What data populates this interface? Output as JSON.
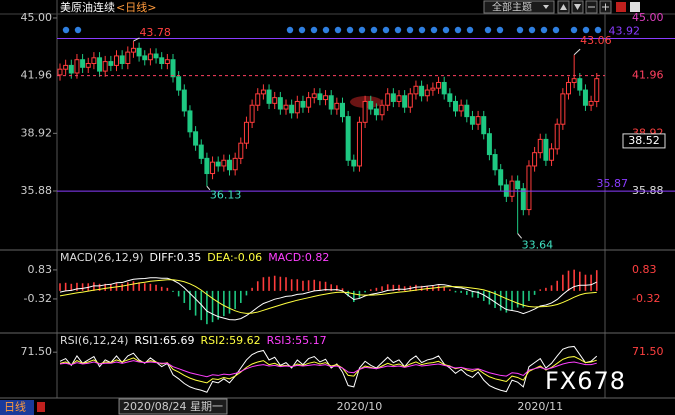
{
  "toolbar": {
    "button": "全部主题"
  },
  "watermark": "FX678",
  "status": {
    "period": "日线"
  },
  "chart_data": [
    {
      "type": "candlestick",
      "title": "美原油连续",
      "period": "<日线>",
      "categories": [
        null,
        null,
        null,
        null,
        null,
        null,
        null,
        null,
        null,
        null,
        null,
        null,
        null,
        null,
        null,
        null,
        null,
        null,
        null,
        null,
        "2020/08/24 星期一",
        null,
        null,
        null,
        null,
        null,
        null,
        null,
        null,
        null,
        null,
        null,
        null,
        null,
        null,
        null,
        null,
        null,
        null,
        null,
        null,
        null,
        null,
        null,
        null,
        null,
        null,
        null,
        null,
        null,
        null,
        null,
        null,
        "2020/10",
        null,
        null,
        null,
        null,
        null,
        null,
        null,
        null,
        null,
        null,
        null,
        null,
        null,
        null,
        null,
        null,
        null,
        null,
        null,
        null,
        null,
        null,
        null,
        null,
        null,
        null,
        null,
        null,
        null,
        null,
        null,
        "2020/11",
        null,
        null,
        null,
        null,
        null,
        null,
        null,
        null,
        null,
        null
      ],
      "open": [
        42.0,
        42.3,
        42.5,
        42.1,
        42.8,
        42.4,
        42.6,
        42.9,
        42.2,
        42.7,
        42.5,
        43.0,
        42.6,
        43.2,
        43.4,
        43.0,
        42.8,
        43.1,
        42.9,
        42.6,
        42.8,
        41.9,
        41.2,
        40.1,
        39.0,
        38.3,
        37.6,
        36.8,
        37.4,
        37.2,
        37.5,
        37.0,
        37.6,
        38.4,
        39.5,
        40.4,
        41.0,
        41.2,
        40.5,
        40.8,
        40.2,
        40.4,
        40.0,
        40.6,
        40.3,
        40.8,
        41.0,
        40.7,
        40.9,
        40.2,
        40.5,
        39.8,
        37.5,
        37.2,
        39.5,
        40.6,
        40.2,
        39.9,
        40.4,
        41.0,
        40.6,
        40.9,
        40.3,
        41.0,
        41.4,
        40.9,
        41.2,
        41.3,
        41.6,
        41.0,
        40.6,
        40.1,
        40.4,
        39.8,
        39.4,
        39.8,
        38.9,
        37.8,
        37.0,
        36.2,
        35.6,
        36.4,
        36.0,
        34.9,
        37.2,
        37.9,
        38.6,
        37.5,
        38.1,
        39.4,
        41.0,
        41.6,
        41.8,
        41.2,
        40.4,
        40.6
      ],
      "high": [
        42.6,
        42.8,
        42.8,
        43.1,
        43.1,
        42.9,
        43.2,
        43.2,
        43.0,
        43.0,
        43.3,
        43.3,
        43.5,
        43.78,
        43.7,
        43.3,
        43.4,
        43.4,
        43.2,
        43.1,
        43.1,
        42.2,
        41.5,
        40.4,
        39.3,
        38.6,
        37.9,
        37.7,
        37.7,
        37.8,
        37.8,
        37.9,
        38.7,
        39.8,
        40.7,
        41.3,
        41.5,
        41.5,
        41.1,
        41.1,
        40.7,
        40.7,
        40.9,
        40.9,
        41.1,
        41.3,
        41.3,
        41.2,
        41.2,
        40.8,
        40.8,
        40.1,
        37.8,
        39.8,
        40.9,
        40.9,
        40.5,
        40.7,
        41.3,
        41.3,
        41.2,
        41.2,
        41.3,
        41.7,
        41.7,
        41.5,
        41.6,
        41.9,
        41.9,
        41.3,
        40.9,
        40.7,
        40.7,
        40.1,
        40.1,
        40.1,
        39.2,
        38.1,
        37.3,
        36.5,
        36.7,
        36.7,
        36.3,
        37.5,
        38.2,
        38.9,
        38.9,
        38.4,
        39.7,
        41.3,
        41.9,
        43.06,
        42.1,
        41.5,
        40.9,
        42.1
      ],
      "low": [
        41.7,
        42.0,
        41.8,
        41.8,
        42.1,
        42.1,
        42.3,
        41.9,
        41.9,
        42.2,
        42.2,
        42.3,
        42.3,
        42.9,
        42.7,
        42.5,
        42.5,
        42.6,
        42.3,
        42.3,
        41.6,
        40.9,
        39.8,
        38.7,
        38.0,
        37.3,
        36.13,
        36.5,
        36.9,
        36.9,
        36.7,
        36.7,
        37.3,
        38.1,
        39.2,
        40.1,
        40.7,
        40.2,
        40.2,
        39.9,
        39.9,
        39.7,
        39.7,
        40.0,
        40.0,
        40.5,
        40.4,
        40.4,
        39.9,
        39.9,
        39.5,
        37.2,
        36.9,
        36.9,
        39.2,
        39.9,
        39.6,
        39.6,
        40.1,
        40.3,
        40.3,
        40.0,
        40.0,
        40.7,
        40.6,
        40.6,
        40.9,
        41.0,
        40.7,
        40.3,
        39.8,
        39.8,
        39.5,
        39.1,
        39.1,
        38.6,
        37.5,
        36.7,
        35.9,
        35.3,
        35.3,
        33.64,
        34.6,
        34.6,
        36.9,
        37.6,
        37.2,
        37.2,
        37.8,
        39.1,
        40.7,
        41.3,
        40.9,
        40.1,
        40.1,
        40.3
      ],
      "close": [
        42.3,
        42.5,
        42.1,
        42.8,
        42.4,
        42.6,
        42.9,
        42.2,
        42.7,
        42.5,
        43.0,
        42.6,
        43.2,
        43.4,
        43.0,
        42.8,
        43.1,
        42.9,
        42.6,
        42.8,
        41.9,
        41.2,
        40.1,
        39.0,
        38.3,
        37.6,
        36.8,
        37.4,
        37.2,
        37.5,
        37.0,
        37.6,
        38.4,
        39.5,
        40.4,
        41.0,
        41.2,
        40.5,
        40.8,
        40.2,
        40.4,
        40.0,
        40.6,
        40.3,
        40.8,
        41.0,
        40.7,
        40.9,
        40.2,
        40.5,
        39.8,
        37.5,
        37.2,
        39.5,
        40.6,
        40.2,
        39.9,
        40.4,
        41.0,
        40.6,
        40.9,
        40.3,
        41.0,
        41.4,
        40.9,
        41.2,
        41.3,
        41.6,
        41.0,
        40.6,
        40.1,
        40.4,
        39.8,
        39.4,
        39.8,
        38.9,
        37.8,
        37.0,
        36.2,
        35.6,
        36.4,
        36.0,
        34.9,
        37.2,
        37.9,
        38.6,
        37.5,
        38.1,
        39.4,
        41.0,
        41.6,
        41.8,
        41.2,
        40.4,
        40.6,
        41.8
      ],
      "up_color": "#ff3c3c",
      "down_color": "#1ec882",
      "ylim": [
        32.77,
        45.42
      ],
      "yticks": [
        {
          "value": 45,
          "label": "45.00",
          "color": "#e040c0"
        },
        {
          "value": 41.96,
          "label": "41.96",
          "color": "#ff4060",
          "line": "dashed"
        },
        {
          "value": 38.92,
          "label": "38.92",
          "color": "#ff4040"
        },
        {
          "value": 35.88,
          "label": "35.88",
          "color": "#dddddd"
        }
      ],
      "hlines": [
        {
          "value": 43.92,
          "color": "#8a3cff"
        },
        {
          "value": 35.87,
          "color": "#8a3cff"
        }
      ],
      "current_price": 38.52
    },
    {
      "type": "macd",
      "legend": [
        {
          "label": "MACD(26,12,9)",
          "color": "#dddddd"
        },
        {
          "label": "DIFF:0.35",
          "color": "#ffffff"
        },
        {
          "label": "DEA:-0.06",
          "color": "#ffff40"
        },
        {
          "label": "MACD:0.82",
          "color": "#ff40ff"
        }
      ],
      "series": [
        {
          "color": "#ffffff",
          "values": [
            -0.05,
            0.0,
            0.02,
            0.08,
            0.1,
            0.14,
            0.2,
            0.2,
            0.24,
            0.26,
            0.32,
            0.33,
            0.4,
            0.46,
            0.48,
            0.49,
            0.52,
            0.52,
            0.5,
            0.5,
            0.42,
            0.3,
            0.12,
            -0.1,
            -0.32,
            -0.55,
            -0.8,
            -0.92,
            -1.02,
            -1.08,
            -1.14,
            -1.15,
            -1.1,
            -0.98,
            -0.82,
            -0.65,
            -0.5,
            -0.42,
            -0.33,
            -0.28,
            -0.22,
            -0.2,
            -0.14,
            -0.12,
            -0.06,
            0.0,
            0.02,
            0.05,
            0.04,
            0.05,
            0.0,
            -0.18,
            -0.34,
            -0.3,
            -0.2,
            -0.14,
            -0.1,
            -0.05,
            0.02,
            0.04,
            0.07,
            0.06,
            0.1,
            0.15,
            0.16,
            0.19,
            0.21,
            0.25,
            0.24,
            0.2,
            0.14,
            0.12,
            0.06,
            -0.02,
            -0.06,
            -0.16,
            -0.3,
            -0.45,
            -0.6,
            -0.74,
            -0.78,
            -0.82,
            -0.9,
            -0.82,
            -0.72,
            -0.6,
            -0.56,
            -0.48,
            -0.34,
            -0.14,
            0.04,
            0.17,
            0.22,
            0.22,
            0.24,
            0.35
          ]
        },
        {
          "color": "#ffff40",
          "values": [
            -0.2,
            -0.16,
            -0.12,
            -0.08,
            -0.05,
            -0.01,
            0.03,
            0.06,
            0.1,
            0.13,
            0.16,
            0.19,
            0.23,
            0.27,
            0.31,
            0.34,
            0.38,
            0.4,
            0.42,
            0.44,
            0.44,
            0.41,
            0.36,
            0.28,
            0.17,
            0.03,
            -0.14,
            -0.3,
            -0.45,
            -0.58,
            -0.69,
            -0.79,
            -0.86,
            -0.89,
            -0.88,
            -0.84,
            -0.77,
            -0.7,
            -0.63,
            -0.56,
            -0.49,
            -0.43,
            -0.37,
            -0.32,
            -0.27,
            -0.22,
            -0.17,
            -0.13,
            -0.09,
            -0.06,
            -0.05,
            -0.07,
            -0.12,
            -0.16,
            -0.17,
            -0.17,
            -0.16,
            -0.14,
            -0.11,
            -0.08,
            -0.05,
            -0.03,
            0.0,
            0.03,
            0.06,
            0.09,
            0.11,
            0.14,
            0.16,
            0.17,
            0.17,
            0.16,
            0.14,
            0.11,
            0.08,
            0.04,
            -0.03,
            -0.11,
            -0.21,
            -0.31,
            -0.4,
            -0.49,
            -0.57,
            -0.62,
            -0.64,
            -0.63,
            -0.62,
            -0.59,
            -0.54,
            -0.46,
            -0.36,
            -0.25,
            -0.16,
            -0.1,
            -0.08,
            -0.06
          ]
        },
        {
          "type": "bar",
          "color": "#ff3c3c",
          "negative_color": "#1ec882",
          "values": [
            0.3,
            0.32,
            0.28,
            0.32,
            0.3,
            0.3,
            0.34,
            0.28,
            0.28,
            0.26,
            0.32,
            0.28,
            0.34,
            0.38,
            0.34,
            0.3,
            0.28,
            0.24,
            0.16,
            0.12,
            -0.04,
            -0.22,
            -0.48,
            -0.76,
            -0.98,
            -1.16,
            -1.32,
            -1.24,
            -1.14,
            -1.0,
            -0.9,
            -0.72,
            -0.48,
            -0.18,
            0.12,
            0.38,
            0.54,
            0.56,
            0.6,
            0.56,
            0.54,
            0.46,
            0.46,
            0.4,
            0.42,
            0.44,
            0.38,
            0.36,
            0.26,
            0.22,
            0.1,
            -0.22,
            -0.44,
            -0.28,
            -0.06,
            0.06,
            0.12,
            0.18,
            0.26,
            0.24,
            0.24,
            0.18,
            0.2,
            0.24,
            0.2,
            0.2,
            0.2,
            0.22,
            0.16,
            0.06,
            -0.06,
            -0.08,
            -0.16,
            -0.26,
            -0.28,
            -0.4,
            -0.54,
            -0.68,
            -0.78,
            -0.86,
            -0.76,
            -0.66,
            -0.66,
            -0.4,
            -0.16,
            0.06,
            0.12,
            0.22,
            0.4,
            0.64,
            0.8,
            0.84,
            0.76,
            0.64,
            0.64,
            0.82
          ]
        }
      ],
      "ylim": [
        -1.63,
        1.54
      ],
      "yticks": [
        0.83,
        -0.32
      ]
    },
    {
      "type": "line",
      "legend": [
        {
          "label": "RSI(6,12,24)",
          "color": "#dddddd"
        },
        {
          "label": "RSI1:65.69",
          "color": "#ffffff"
        },
        {
          "label": "RSI2:59.62",
          "color": "#ffff40"
        },
        {
          "label": "RSI3:55.17",
          "color": "#ff40ff"
        }
      ],
      "series": [
        {
          "color": "#ffffff",
          "values": [
            58,
            62,
            52,
            66,
            55,
            60,
            65,
            50,
            60,
            56,
            66,
            56,
            66,
            70,
            60,
            55,
            63,
            57,
            50,
            55,
            38,
            32,
            25,
            20,
            17,
            15,
            12,
            28,
            26,
            32,
            26,
            36,
            48,
            60,
            68,
            72,
            74,
            60,
            64,
            52,
            56,
            48,
            60,
            53,
            62,
            65,
            57,
            61,
            48,
            54,
            42,
            22,
            20,
            48,
            58,
            52,
            48,
            56,
            64,
            56,
            60,
            50,
            60,
            66,
            56,
            60,
            62,
            66,
            54,
            48,
            40,
            46,
            38,
            34,
            42,
            30,
            22,
            18,
            15,
            13,
            30,
            27,
            20,
            50,
            56,
            62,
            48,
            55,
            66,
            76,
            79,
            80,
            68,
            56,
            58,
            65.69
          ]
        },
        {
          "color": "#ffff40",
          "values": [
            55,
            57,
            53,
            59,
            55,
            57,
            60,
            54,
            57,
            56,
            60,
            57,
            60,
            63,
            58,
            56,
            59,
            57,
            54,
            56,
            46,
            42,
            37,
            33,
            30,
            28,
            26,
            32,
            31,
            34,
            32,
            36,
            42,
            49,
            54,
            57,
            59,
            53,
            55,
            51,
            52,
            50,
            54,
            52,
            55,
            57,
            54,
            56,
            51,
            53,
            48,
            37,
            36,
            46,
            51,
            49,
            47,
            51,
            55,
            52,
            54,
            50,
            54,
            57,
            53,
            55,
            56,
            58,
            53,
            51,
            47,
            49,
            45,
            43,
            46,
            40,
            35,
            32,
            30,
            28,
            36,
            34,
            30,
            43,
            47,
            51,
            45,
            49,
            55,
            61,
            64,
            65,
            61,
            56,
            57,
            59.62
          ]
        },
        {
          "color": "#ff40ff",
          "values": [
            54,
            55,
            53,
            56,
            54,
            55,
            57,
            54,
            55,
            55,
            57,
            55,
            57,
            59,
            57,
            56,
            57,
            56,
            55,
            55,
            50,
            47,
            44,
            41,
            39,
            37,
            35,
            38,
            37,
            39,
            38,
            40,
            43,
            47,
            50,
            52,
            53,
            51,
            52,
            50,
            51,
            50,
            52,
            51,
            52,
            53,
            52,
            53,
            50,
            51,
            48,
            42,
            41,
            46,
            49,
            48,
            47,
            49,
            51,
            50,
            51,
            49,
            51,
            53,
            51,
            52,
            53,
            54,
            52,
            50,
            48,
            49,
            47,
            46,
            47,
            44,
            41,
            39,
            37,
            36,
            41,
            40,
            37,
            45,
            47,
            49,
            46,
            48,
            51,
            54,
            56,
            57,
            55,
            53,
            53,
            55.17
          ]
        }
      ],
      "ylim": [
        5,
        97
      ],
      "yticks": [
        {
          "value": 71.5,
          "label": "71.50"
        }
      ]
    }
  ]
}
